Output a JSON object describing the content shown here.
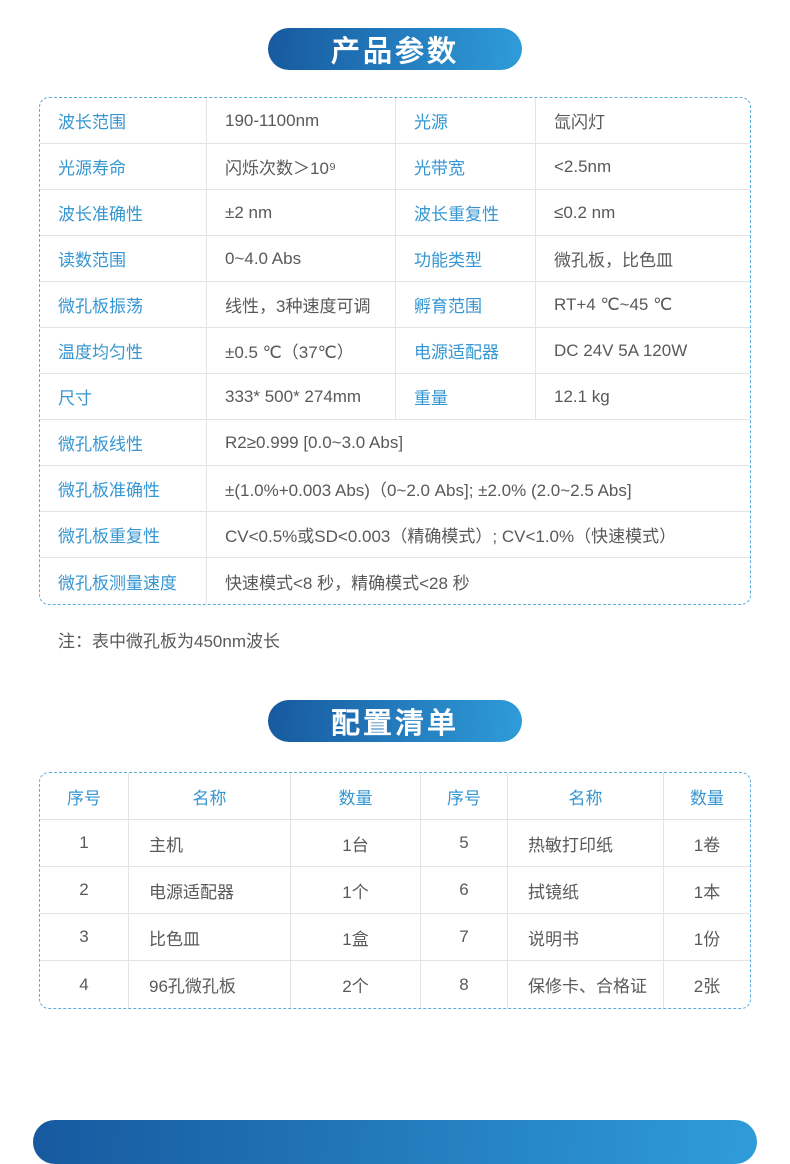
{
  "banners": {
    "params": "产品参数",
    "config": "配置清单"
  },
  "params_table": {
    "rows4": [
      {
        "l1": "波长范围",
        "v1": "190-1100nm",
        "l2": "光源",
        "v2": "氙闪灯"
      },
      {
        "l1": "光源寿命",
        "v1": "闪烁次数＞10⁹",
        "l2": "光带宽",
        "v2": "<2.5nm"
      },
      {
        "l1": "波长准确性",
        "v1": "±2 nm",
        "l2": "波长重复性",
        "v2": "≤0.2 nm"
      },
      {
        "l1": "读数范围",
        "v1": "0~4.0 Abs",
        "l2": "功能类型",
        "v2": "微孔板，比色皿"
      },
      {
        "l1": "微孔板振荡",
        "v1": "线性，3种速度可调",
        "l2": "孵育范围",
        "v2": "RT+4 ℃~45 ℃"
      },
      {
        "l1": "温度均匀性",
        "v1": "±0.5 ℃（37℃）",
        "l2": "电源适配器",
        "v2": "DC 24V 5A 120W"
      },
      {
        "l1": "尺寸",
        "v1": "333* 500* 274mm",
        "l2": "重量",
        "v2": "12.1 kg"
      }
    ],
    "rows2": [
      {
        "l": "微孔板线性",
        "v": "R2≥0.999 [0.0~3.0 Abs]"
      },
      {
        "l": "微孔板准确性",
        "v": "±(1.0%+0.003 Abs)（0~2.0 Abs]; ±2.0% (2.0~2.5 Abs]"
      },
      {
        "l": "微孔板重复性",
        "v": "CV<0.5%或SD<0.003（精确模式）; CV<1.0%（快速模式）"
      },
      {
        "l": "微孔板测量速度",
        "v": "快速模式<8 秒，精确模式<28 秒"
      }
    ]
  },
  "note": "注：表中微孔板为450nm波长",
  "config_table": {
    "headers": [
      "序号",
      "名称",
      "数量",
      "序号",
      "名称",
      "数量"
    ],
    "rows": [
      [
        "1",
        "主机",
        "1台",
        "5",
        "热敏打印纸",
        "1卷"
      ],
      [
        "2",
        "电源适配器",
        "1个",
        "6",
        "拭镜纸",
        "1本"
      ],
      [
        "3",
        "比色皿",
        "1盒",
        "7",
        "说明书",
        "1份"
      ],
      [
        "4",
        "96孔微孔板",
        "2个",
        "8",
        "保修卡、合格证",
        "2张"
      ]
    ]
  },
  "colors": {
    "accent_blue": "#3596d2",
    "banner_gradient_dark": "#17599f",
    "banner_gradient_light": "#2f9cd9",
    "dashed_border": "#5aaede",
    "grid_line": "#e4e4e4",
    "value_text": "#58595b"
  }
}
